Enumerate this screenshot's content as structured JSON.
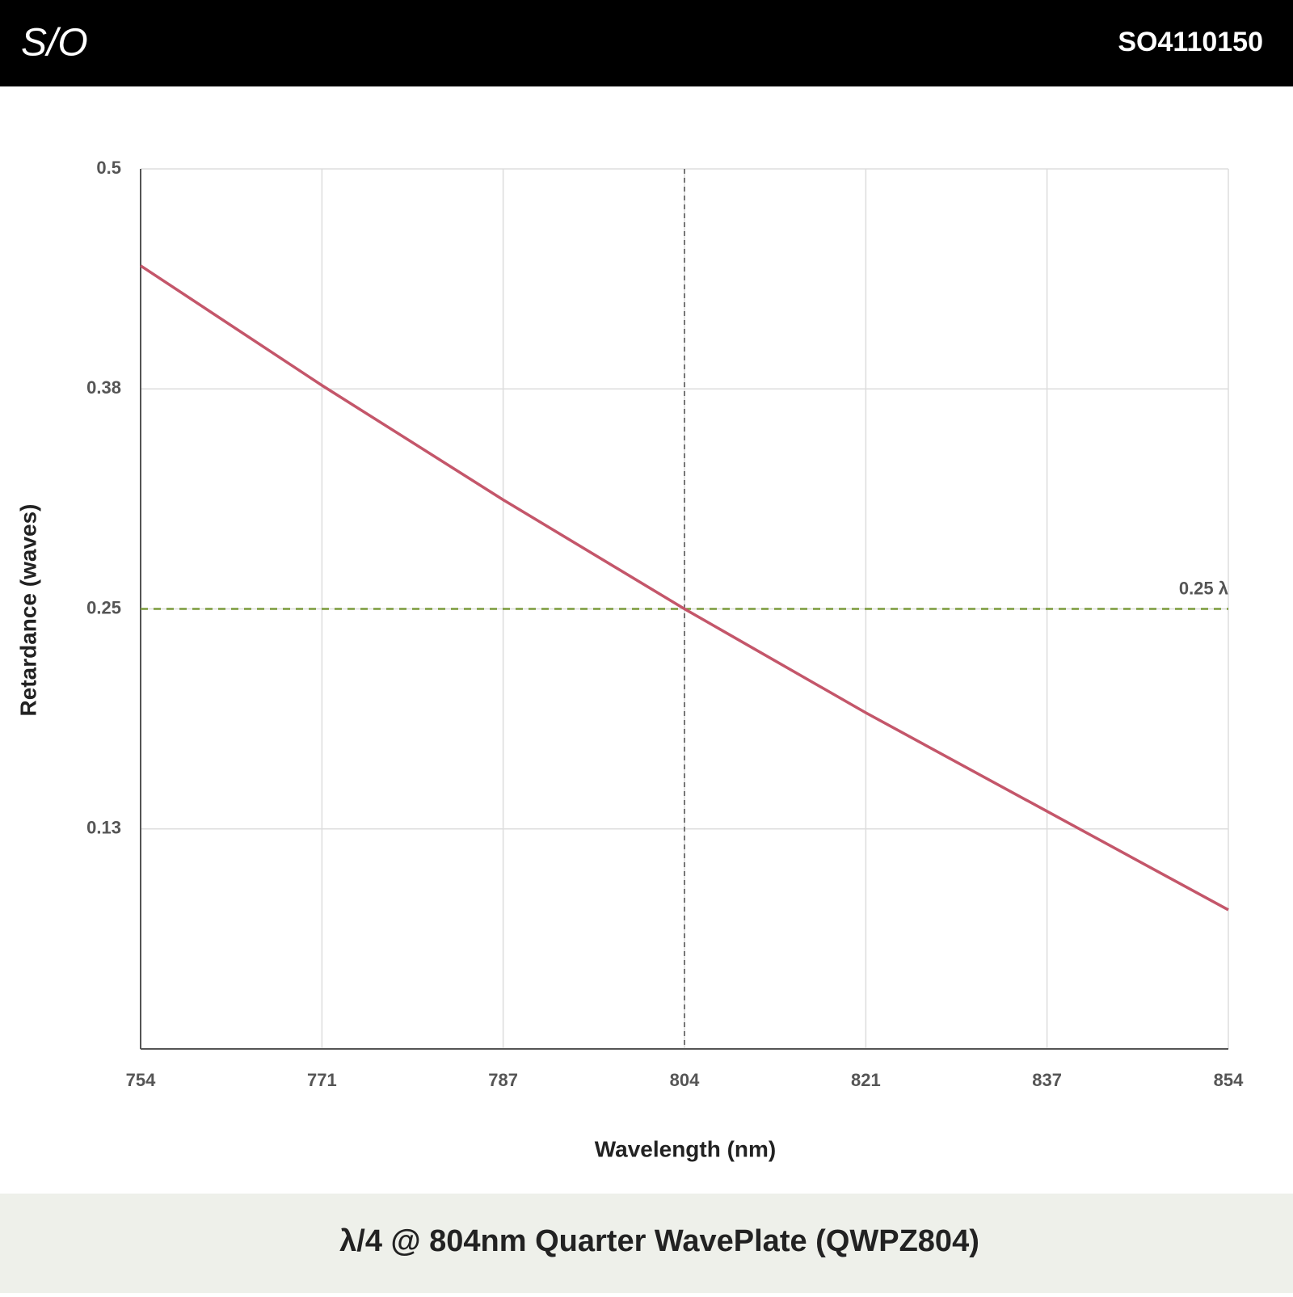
{
  "header": {
    "logo": "S/O",
    "code": "SO4110150"
  },
  "chart_data": {
    "type": "line",
    "title": "λ/4 @ 804nm Quarter WavePlate (QWPZ804)",
    "x_label": "Wavelength (nm)",
    "y_label": "Retardance (waves)",
    "x": [
      754,
      770.67,
      787.33,
      804,
      820.67,
      837.33,
      854
    ],
    "values": [
      0.445,
      0.377,
      0.312,
      0.25,
      0.191,
      0.135,
      0.079
    ],
    "color": "#c4566a",
    "xlim": [
      754,
      854
    ],
    "xticks": [
      754,
      {
        "value": 770.67,
        "label": "771"
      },
      {
        "value": 787.33,
        "label": "787"
      },
      804,
      {
        "value": 820.67,
        "label": "821"
      },
      {
        "value": 837.33,
        "label": "837"
      },
      854
    ],
    "ylim": [
      0,
      0.5
    ],
    "yticks": [
      {
        "value": 0.125,
        "label": "0.13"
      },
      0.25,
      {
        "value": 0.375,
        "label": "0.38"
      },
      0.5
    ],
    "grid": true,
    "reference_lines": [
      {
        "axis": "y",
        "value": 0.25,
        "label": "0.25 λ",
        "color": "#7a9a3a"
      },
      {
        "axis": "x",
        "value": 804,
        "color": "#777777"
      }
    ]
  }
}
